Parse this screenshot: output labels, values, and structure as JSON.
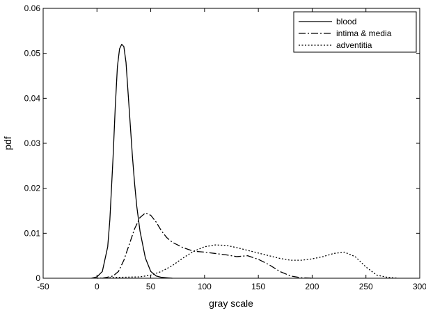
{
  "chart_data": {
    "type": "line",
    "title": "",
    "xlabel": "gray scale",
    "ylabel": "pdf",
    "xlim": [
      -50,
      300
    ],
    "ylim": [
      0,
      0.06
    ],
    "xticks": [
      -50,
      0,
      50,
      100,
      150,
      200,
      250,
      300
    ],
    "yticks": [
      0,
      0.01,
      0.02,
      0.03,
      0.04,
      0.05,
      0.06
    ],
    "ytick_labels": [
      "0",
      "0.01",
      "0.02",
      "0.03",
      "0.04",
      "0.05",
      "0.06"
    ],
    "grid": false,
    "legend_position": "top-right",
    "series": [
      {
        "name": "blood",
        "line_style": "solid",
        "color": "#000000",
        "x": [
          -5,
          0,
          5,
          10,
          12,
          15,
          17,
          19,
          21,
          23,
          25,
          27,
          29,
          31,
          33,
          35,
          37,
          40,
          45,
          50,
          55,
          60,
          65,
          70
        ],
        "y": [
          0,
          0.0003,
          0.0015,
          0.007,
          0.013,
          0.027,
          0.038,
          0.047,
          0.051,
          0.052,
          0.0515,
          0.048,
          0.041,
          0.034,
          0.027,
          0.021,
          0.016,
          0.0105,
          0.0045,
          0.0015,
          0.0005,
          0.0002,
          0.0001,
          0
        ]
      },
      {
        "name": "intima & media",
        "line_style": "dashdot",
        "color": "#000000",
        "x": [
          5,
          15,
          20,
          25,
          30,
          35,
          40,
          45,
          50,
          55,
          60,
          65,
          70,
          80,
          90,
          100,
          110,
          120,
          130,
          140,
          150,
          160,
          170,
          180,
          190,
          200
        ],
        "y": [
          0,
          0.0005,
          0.0015,
          0.004,
          0.0075,
          0.011,
          0.0135,
          0.0145,
          0.014,
          0.0125,
          0.0105,
          0.009,
          0.008,
          0.0068,
          0.006,
          0.0058,
          0.0055,
          0.0052,
          0.0048,
          0.005,
          0.0042,
          0.003,
          0.0015,
          0.0005,
          0.0001,
          0
        ]
      },
      {
        "name": "adventitia",
        "line_style": "dotted",
        "color": "#000000",
        "x": [
          0,
          20,
          40,
          50,
          60,
          70,
          80,
          90,
          100,
          110,
          120,
          130,
          140,
          150,
          160,
          170,
          180,
          190,
          200,
          210,
          220,
          230,
          240,
          250,
          260,
          270,
          280
        ],
        "y": [
          0,
          0.0002,
          0.0003,
          0.0007,
          0.0015,
          0.0028,
          0.0045,
          0.006,
          0.007,
          0.0074,
          0.0073,
          0.0068,
          0.0062,
          0.0056,
          0.005,
          0.0044,
          0.004,
          0.004,
          0.0043,
          0.0048,
          0.0055,
          0.0058,
          0.0048,
          0.0025,
          0.0007,
          0.0002,
          0
        ]
      }
    ]
  }
}
